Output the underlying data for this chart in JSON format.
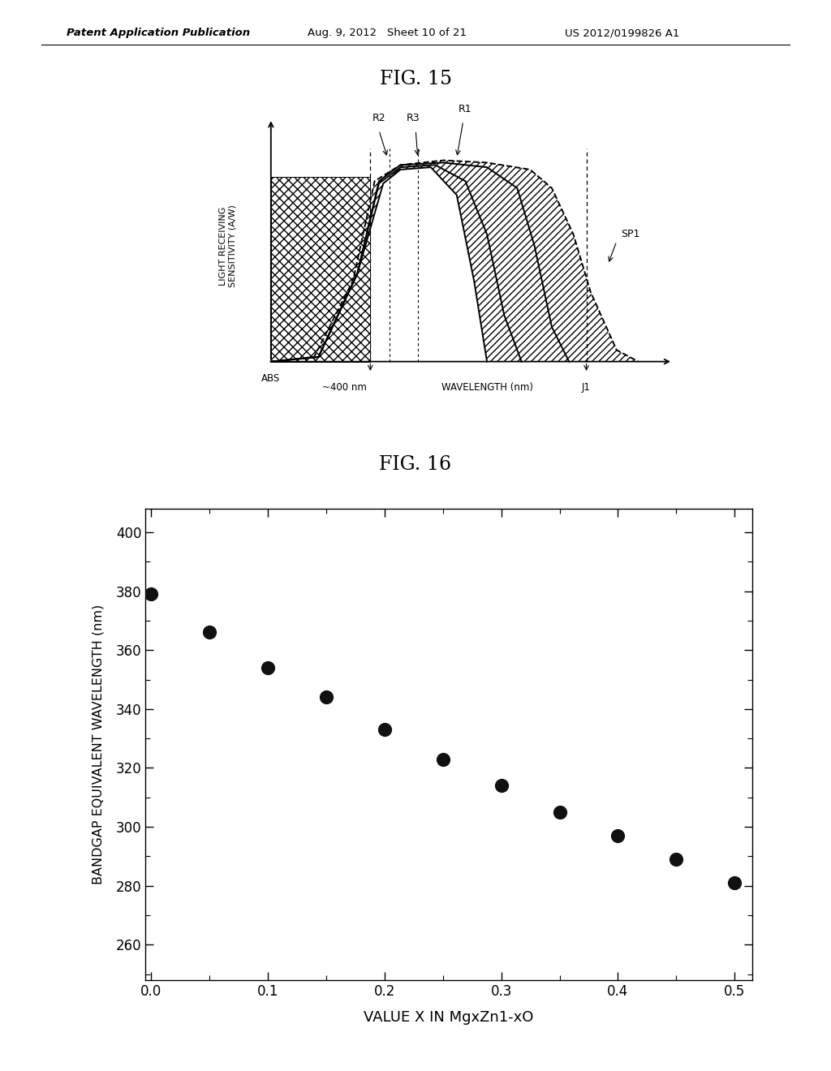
{
  "header_left": "Patent Application Publication",
  "header_mid": "Aug. 9, 2012   Sheet 10 of 21",
  "header_right": "US 2012/0199826 A1",
  "fig15_title": "FIG. 15",
  "fig16_title": "FIG. 16",
  "scatter_x": [
    0.0,
    0.05,
    0.1,
    0.15,
    0.2,
    0.25,
    0.3,
    0.35,
    0.4,
    0.45,
    0.5
  ],
  "scatter_y": [
    379,
    366,
    354,
    344,
    333,
    323,
    314,
    305,
    297,
    289,
    281
  ],
  "scatter_xlabel": "VALUE X IN MgxZn1-xO",
  "scatter_ylabel": "BANDGAP EQUIVALENT WAVELENGTH (nm)",
  "scatter_yticks": [
    260,
    280,
    300,
    320,
    340,
    360,
    380,
    400
  ],
  "scatter_xticks": [
    0.0,
    0.1,
    0.2,
    0.3,
    0.4,
    0.5
  ],
  "background_color": "#ffffff",
  "dot_color": "#111111",
  "dot_size": 130
}
